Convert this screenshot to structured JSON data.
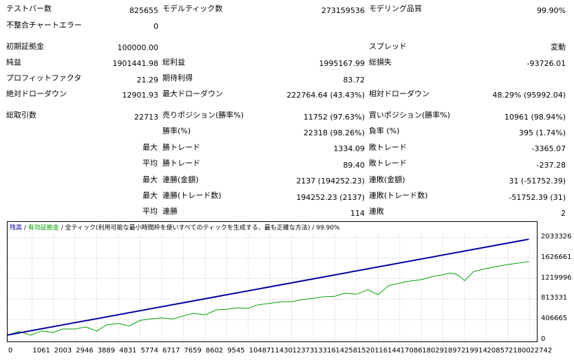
{
  "report": {
    "test_bars": {
      "label": "テストバー数",
      "value": "825655"
    },
    "model_ticks": {
      "label": "モデルティック数",
      "value": "273159536"
    },
    "model_quality": {
      "label": "モデリング品質",
      "value": "99.90%"
    },
    "mismatch_errors": {
      "label": "不整合チャートエラー",
      "value": "0"
    },
    "initial_deposit": {
      "label": "初期証拠金",
      "value": "100000.00"
    },
    "spread": {
      "label": "スプレッド",
      "value": "変動"
    },
    "net_profit": {
      "label": "純益",
      "value": "1901441.98"
    },
    "gross_profit": {
      "label": "総利益",
      "value": "1995167.99"
    },
    "gross_loss": {
      "label": "総損失",
      "value": "-93726.01"
    },
    "profit_factor": {
      "label": "プロフィットファクタ",
      "value": "21.29"
    },
    "expected_payoff": {
      "label": "期待利得",
      "value": "83.72"
    },
    "abs_drawdown": {
      "label": "絶対ドローダウン",
      "value": "12901.93"
    },
    "max_drawdown": {
      "label": "最大ドローダウン",
      "value": "222764.64 (43.43%)"
    },
    "rel_drawdown": {
      "label": "相対ドローダウン",
      "value": "48.29% (95992.04)"
    },
    "total_trades": {
      "label": "総取引数",
      "value": "22713"
    },
    "short_positions": {
      "label": "売りポジション(勝率%)",
      "value": "11752 (97.63%)"
    },
    "long_positions": {
      "label": "買いポジション(勝率%)",
      "value": "10961 (98.94%)"
    },
    "win_rate": {
      "label": "勝率(%)",
      "value": "22318 (98.26%)"
    },
    "loss_rate": {
      "label": "負率 (%)",
      "value": "395 (1.74%)"
    },
    "largest_win": {
      "prefix": "最大",
      "label": "勝トレード",
      "value": "1334.09"
    },
    "largest_loss": {
      "label": "敗トレード",
      "value": "-3365.07"
    },
    "average_win": {
      "prefix": "平均",
      "label": "勝トレード",
      "value": "89.40"
    },
    "average_loss": {
      "label": "敗トレード",
      "value": "-237.28"
    },
    "max_consec_wins": {
      "prefix": "最大",
      "label": "連勝(金額)",
      "value": "2137 (194252.23)"
    },
    "max_consec_losses": {
      "label": "連敗(金額)",
      "value": "31 (-51752.39)"
    },
    "max_consec_profit": {
      "prefix": "最大",
      "label": "連勝(トレード数)",
      "value": "194252.23 (2137)"
    },
    "max_consec_loss": {
      "label": "連敗(トレード数)",
      "value": "-51752.39 (31)"
    },
    "avg_consec_wins": {
      "prefix": "平均",
      "label": "連勝",
      "value": "114"
    },
    "avg_consec_losses": {
      "label": "連敗",
      "value": "2"
    }
  },
  "chart_data": {
    "type": "line",
    "legend": {
      "balance": "残高",
      "equity": "有効証拠金",
      "model": "全ティック(利用可能な最小時間枠を使いすべてのティックを生成する、最も正確な方法)",
      "quality": "99.90%"
    },
    "colors": {
      "balance": "#0000a0",
      "equity": "#00a000",
      "grid": "#c0c0c0"
    },
    "xlim": [
      0,
      23000
    ],
    "ylim": [
      0,
      2100000
    ],
    "y_ticks": [
      "2033326",
      "1626661",
      "1219996",
      "813331",
      "406665",
      "0"
    ],
    "y_tick_values": [
      2033326,
      1626661,
      1219996,
      813331,
      406665,
      0
    ],
    "x_ticks": [
      "0",
      "1061",
      "2003",
      "2946",
      "3889",
      "4831",
      "5774",
      "6717",
      "7659",
      "8602",
      "9545",
      "10487",
      "11430",
      "12373",
      "13316",
      "14258",
      "15201",
      "16144",
      "17086",
      "18029",
      "18972",
      "19914",
      "20857",
      "21800",
      "22742"
    ],
    "series": [
      {
        "key": "balance",
        "x": [
          0,
          22713
        ],
        "y": [
          100000,
          2001442
        ]
      },
      {
        "key": "equity",
        "x": [
          0,
          500,
          1000,
          1500,
          2000,
          2400,
          2946,
          3400,
          3889,
          4300,
          4831,
          5300,
          5774,
          6200,
          6717,
          7200,
          7659,
          8100,
          8602,
          9100,
          9545,
          10000,
          10487,
          10900,
          11430,
          11900,
          12373,
          12800,
          13316,
          13800,
          14258,
          14700,
          15201,
          15700,
          16144,
          16600,
          17086,
          17500,
          18029,
          18500,
          18972,
          19300,
          19600,
          19914,
          20300,
          20857,
          21300,
          21800,
          22300,
          22713
        ],
        "y": [
          100000,
          170000,
          100000,
          180000,
          150000,
          220000,
          220000,
          260000,
          180000,
          300000,
          330000,
          280000,
          390000,
          420000,
          440000,
          420000,
          480000,
          530000,
          500000,
          600000,
          610000,
          640000,
          630000,
          700000,
          730000,
          760000,
          760000,
          800000,
          830000,
          860000,
          870000,
          930000,
          910000,
          1000000,
          900000,
          1080000,
          1130000,
          1170000,
          1200000,
          1260000,
          1300000,
          1330000,
          1300000,
          1180000,
          1360000,
          1420000,
          1460000,
          1500000,
          1530000,
          1560000
        ]
      }
    ]
  }
}
